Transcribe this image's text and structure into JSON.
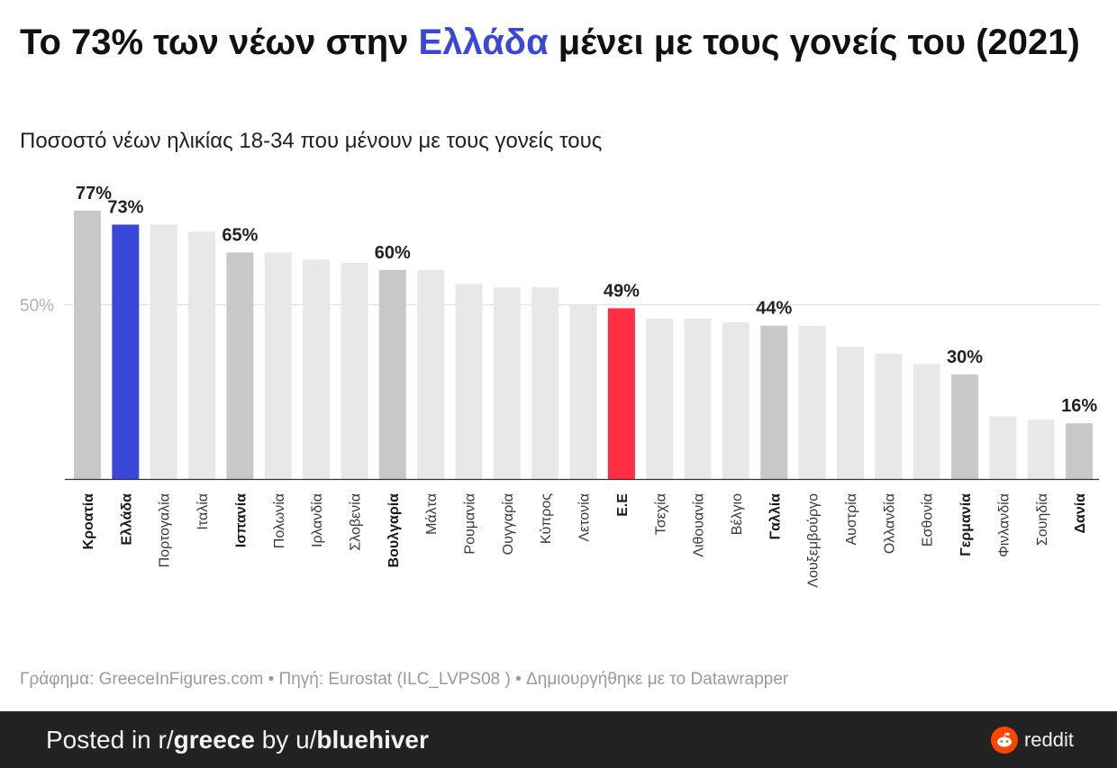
{
  "title": {
    "part1": "Το 73% των νέων στην ",
    "highlight": "Ελλάδα",
    "part2": " μένει με τους γονείς του (2021)"
  },
  "subtitle": "Ποσοστό νέων ηλικίας 18-34 που μένουν με τους γονείς τους",
  "source": "Γράφημα: GreeceInFigures.com • Πηγή: Eurostat (ILC_LVPS08 ) • Δημιουργήθηκε με το Datawrapper",
  "footer": {
    "posted_prefix": "Posted in r/",
    "subreddit": "greece",
    "by": " by u/",
    "user": "bluehiver",
    "brand": "reddit"
  },
  "colors": {
    "greece": "#3a48d8",
    "eu": "#ff2e42",
    "highlighted": "#c8c8c8",
    "other": "#e8e8e8",
    "reddit": "#ff4500"
  },
  "chart_data": {
    "type": "bar",
    "title": "Το 73% των νέων στην Ελλάδα μένει με τους γονείς του (2021)",
    "subtitle": "Ποσοστό νέων ηλικίας 18-34 που μένουν με τους γονείς τους",
    "xlabel": "",
    "ylabel": "",
    "ylim": [
      0,
      77
    ],
    "yticks": [
      {
        "value": 50,
        "label": "50%"
      }
    ],
    "grid": true,
    "categories": [
      "Κροατία",
      "Ελλάδα",
      "Πορτογαλία",
      "Ιταλία",
      "Ισπανία",
      "Πολωνία",
      "Ιρλανδία",
      "Σλοβενία",
      "Βουλγαρία",
      "Μάλτα",
      "Ρουμανία",
      "Ουγγαρία",
      "Κύπρος",
      "Λετονία",
      "Ε.Ε",
      "Τσεχία",
      "Λιθουανία",
      "Βέλγιο",
      "Γαλλία",
      "Λουξεμβούργο",
      "Αυστρία",
      "Ολλανδία",
      "Εσθονία",
      "Γερμανία",
      "Φινλανδία",
      "Σουηδία",
      "Δανία"
    ],
    "values": [
      77,
      73,
      73,
      71,
      65,
      65,
      63,
      62,
      60,
      60,
      56,
      55,
      55,
      50,
      49,
      46,
      46,
      45,
      44,
      44,
      38,
      36,
      33,
      30,
      18,
      17,
      16
    ],
    "bar_labels": [
      "77%",
      "73%",
      "",
      "",
      "65%",
      "",
      "",
      "",
      "60%",
      "",
      "",
      "",
      "",
      "",
      "49%",
      "",
      "",
      "",
      "44%",
      "",
      "",
      "",
      "",
      "30%",
      "",
      "",
      "16%"
    ],
    "highlighted": [
      "Κροατία",
      "Ισπανία",
      "Βουλγαρία",
      "Γαλλία",
      "Γερμανία",
      "Δανία"
    ],
    "bold_categories": [
      "Κροατία",
      "Ελλάδα",
      "Ισπανία",
      "Βουλγαρία",
      "Ε.Ε",
      "Γαλλία",
      "Γερμανία",
      "Δανία"
    ],
    "special": {
      "Ελλάδα": "greece",
      "Ε.Ε": "eu"
    }
  }
}
